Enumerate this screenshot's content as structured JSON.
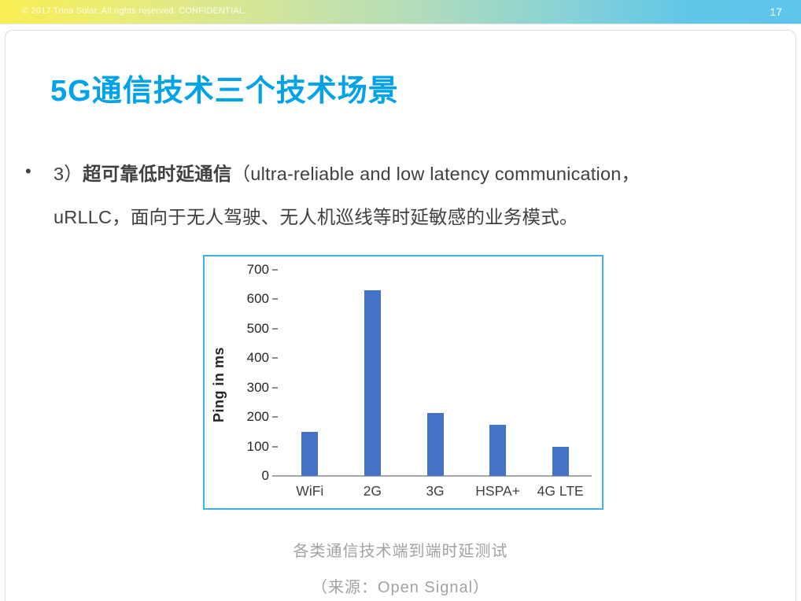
{
  "banner": {
    "copyright": "© 2017 Trina Solar. All rights reserved. CONFIDENTIAL.",
    "page_number": "17",
    "gradient_left_color": "#f8ee52",
    "gradient_mid_color": "#b2dcba",
    "gradient_right_color": "#5cc5e9"
  },
  "slide": {
    "title": "5G通信技术三个技术场景",
    "title_color": "#00a2e9",
    "bullet": {
      "marker": "•",
      "line1_prefix": "3）",
      "line1_bold": "超可靠低时延通信",
      "line1_rest": "（ultra-reliable and low latency communication，",
      "line2": "uRLLC，面向于无人驾驶、无人机巡线等时延敏感的业务模式。"
    },
    "caption_line1": "各类通信技术端到端时延测试",
    "caption_line2": "（来源：Open Signal）"
  },
  "chart_data": {
    "type": "bar",
    "categories": [
      "WiFi",
      "2G",
      "3G",
      "HSPA+",
      "4G LTE"
    ],
    "values": [
      150,
      630,
      215,
      175,
      98
    ],
    "title": "",
    "xlabel": "",
    "ylabel": "Ping in ms",
    "ylim": [
      0,
      700
    ],
    "ytick_step": 100,
    "grid": false,
    "legend": false,
    "bar_color": "#4472c4",
    "chart_border_color": "#3db4e4",
    "axis_color": "#a6a6a6",
    "tick_color": "#8c8c8c"
  }
}
